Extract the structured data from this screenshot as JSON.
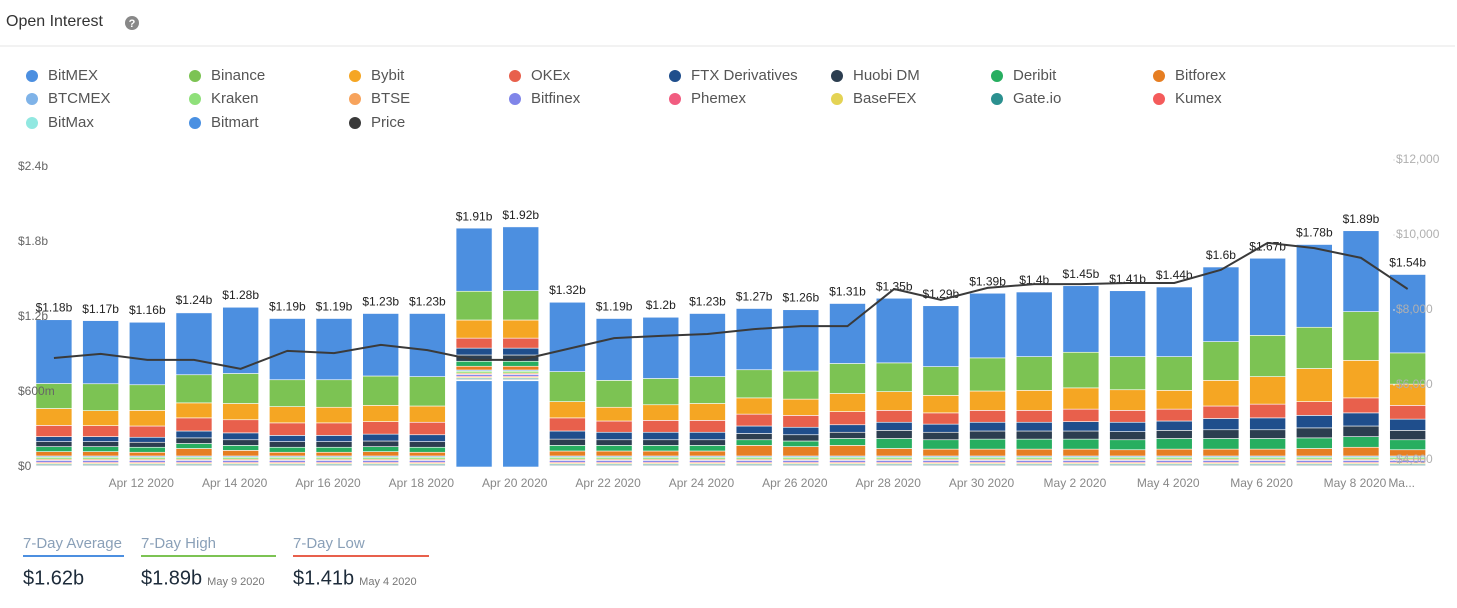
{
  "header": {
    "title": "Open Interest"
  },
  "chart_data": {
    "type": "stacked-bar",
    "categories": [
      null,
      null,
      "Apr 12 2020",
      null,
      "Apr 14 2020",
      null,
      "Apr 16 2020",
      null,
      "Apr 18 2020",
      null,
      "Apr 20 2020",
      null,
      "Apr 22 2020",
      null,
      "Apr 24 2020",
      null,
      "Apr 26 2020",
      null,
      "Apr 28 2020",
      null,
      "Apr 30 2020",
      null,
      "May 2 2020",
      null,
      "May 4 2020",
      null,
      "May 6 2020",
      null,
      "May 8 2020",
      "Ma..."
    ],
    "series": [
      {
        "name": "BitMEX",
        "color": "#4c8fe0",
        "values": [
          510,
          505,
          500,
          495,
          530,
          490,
          490,
          500,
          505,
          505,
          510,
          555,
          495,
          490,
          505,
          490,
          490,
          480,
          517,
          487,
          517,
          517,
          532,
          527,
          557,
          597,
          617,
          662,
          647,
          627
        ]
      },
      {
        "name": "Binance",
        "color": "#7cc353",
        "values": [
          200,
          215,
          205,
          225,
          240,
          215,
          220,
          235,
          235,
          230,
          235,
          240,
          215,
          210,
          215,
          225,
          225,
          240,
          230,
          230,
          265,
          270,
          285,
          265,
          270,
          310,
          330,
          330,
          390,
          250
        ]
      },
      {
        "name": "Bybit",
        "color": "#f5a623",
        "values": [
          135,
          120,
          125,
          120,
          130,
          130,
          125,
          130,
          130,
          145,
          145,
          130,
          110,
          125,
          135,
          130,
          130,
          145,
          150,
          140,
          155,
          160,
          170,
          165,
          150,
          205,
          220,
          265,
          300,
          170
        ]
      },
      {
        "name": "OKEx",
        "color": "#e8604c",
        "values": [
          90,
          88,
          90,
          105,
          105,
          100,
          100,
          100,
          100,
          80,
          80,
          105,
          90,
          95,
          95,
          95,
          95,
          105,
          95,
          90,
          95,
          95,
          100,
          95,
          95,
          100,
          110,
          110,
          120,
          110
        ]
      },
      {
        "name": "FTX Derivatives",
        "color": "#1f4e8c",
        "values": [
          40,
          40,
          40,
          55,
          55,
          50,
          50,
          55,
          55,
          55,
          55,
          65,
          60,
          60,
          60,
          60,
          60,
          60,
          65,
          65,
          70,
          70,
          75,
          75,
          75,
          90,
          95,
          100,
          105,
          90
        ]
      },
      {
        "name": "Huobi DM",
        "color": "#2c3e50",
        "values": [
          40,
          40,
          40,
          45,
          45,
          45,
          45,
          45,
          45,
          50,
          50,
          50,
          45,
          45,
          45,
          50,
          50,
          50,
          65,
          60,
          65,
          65,
          65,
          65,
          65,
          70,
          70,
          80,
          85,
          75
        ]
      },
      {
        "name": "Deribit",
        "color": "#27ae60",
        "values": [
          40,
          40,
          40,
          40,
          40,
          40,
          40,
          40,
          40,
          40,
          40,
          45,
          45,
          45,
          45,
          45,
          45,
          55,
          80,
          75,
          80,
          80,
          80,
          80,
          85,
          85,
          85,
          85,
          85,
          80
        ]
      },
      {
        "name": "Bitforex",
        "color": "#e67e22",
        "values": [
          35,
          35,
          30,
          60,
          45,
          30,
          30,
          35,
          30,
          30,
          30,
          40,
          40,
          40,
          40,
          85,
          75,
          85,
          60,
          55,
          55,
          55,
          55,
          50,
          55,
          55,
          55,
          60,
          70,
          50
        ]
      },
      {
        "name": "BTCMEX",
        "color": "#7fb3e8",
        "values": [
          10,
          10,
          10,
          10,
          10,
          10,
          10,
          10,
          10,
          10,
          10,
          10,
          10,
          10,
          10,
          10,
          10,
          10,
          10,
          10,
          10,
          10,
          10,
          10,
          10,
          10,
          10,
          10,
          10,
          10
        ]
      },
      {
        "name": "Kraken",
        "color": "#8fe07a",
        "values": [
          15,
          15,
          15,
          15,
          15,
          15,
          15,
          15,
          15,
          15,
          15,
          15,
          15,
          15,
          15,
          15,
          15,
          15,
          15,
          15,
          15,
          15,
          15,
          15,
          15,
          15,
          15,
          15,
          15,
          15
        ]
      },
      {
        "name": "BTSE",
        "color": "#f7a35c",
        "values": [
          10,
          10,
          10,
          10,
          10,
          10,
          10,
          10,
          10,
          10,
          10,
          10,
          10,
          10,
          10,
          10,
          10,
          10,
          10,
          10,
          10,
          10,
          10,
          10,
          10,
          10,
          10,
          10,
          10,
          10
        ]
      },
      {
        "name": "Bitfinex",
        "color": "#8085e9",
        "values": [
          15,
          15,
          15,
          15,
          15,
          15,
          15,
          15,
          15,
          15,
          15,
          15,
          15,
          15,
          15,
          15,
          15,
          15,
          15,
          15,
          15,
          15,
          15,
          15,
          15,
          15,
          15,
          15,
          15,
          15
        ]
      },
      {
        "name": "Phemex",
        "color": "#f15c80",
        "values": [
          8,
          8,
          8,
          8,
          8,
          8,
          8,
          8,
          8,
          8,
          8,
          8,
          8,
          8,
          8,
          8,
          8,
          8,
          8,
          8,
          8,
          8,
          8,
          8,
          8,
          8,
          8,
          8,
          8,
          8
        ]
      },
      {
        "name": "BaseFEX",
        "color": "#e4d354",
        "values": [
          8,
          8,
          8,
          8,
          8,
          8,
          8,
          8,
          8,
          8,
          8,
          8,
          8,
          8,
          8,
          8,
          8,
          8,
          8,
          8,
          8,
          8,
          8,
          8,
          8,
          8,
          8,
          8,
          8,
          8
        ]
      },
      {
        "name": "Gate.io",
        "color": "#2b908f",
        "values": [
          10,
          10,
          10,
          10,
          10,
          10,
          10,
          10,
          10,
          10,
          10,
          10,
          10,
          10,
          10,
          10,
          10,
          10,
          10,
          10,
          10,
          10,
          10,
          10,
          10,
          10,
          10,
          10,
          10,
          10
        ]
      },
      {
        "name": "Kumex",
        "color": "#f45b5b",
        "values": [
          6,
          6,
          6,
          6,
          6,
          6,
          6,
          6,
          6,
          6,
          6,
          6,
          6,
          6,
          6,
          6,
          6,
          6,
          6,
          6,
          6,
          6,
          6,
          6,
          6,
          6,
          6,
          6,
          6,
          6
        ]
      },
      {
        "name": "BitMax",
        "color": "#91e8e1",
        "values": [
          4,
          4,
          4,
          4,
          4,
          4,
          4,
          4,
          4,
          4,
          4,
          4,
          4,
          4,
          4,
          4,
          4,
          4,
          4,
          4,
          4,
          4,
          4,
          4,
          4,
          4,
          4,
          4,
          4,
          4
        ]
      },
      {
        "name": "Bitmart",
        "color": "#4a90e2",
        "values": [
          2,
          2,
          2,
          2,
          2,
          2,
          2,
          2,
          2,
          690,
          690,
          2,
          2,
          2,
          2,
          2,
          2,
          2,
          2,
          2,
          2,
          2,
          2,
          2,
          2,
          2,
          2,
          2,
          2,
          2
        ]
      },
      {
        "name": "Price",
        "color": "#3a3a3a",
        "type": "line",
        "axis": "y2",
        "values": [
          6720,
          6830,
          6670,
          6670,
          6430,
          6910,
          6850,
          7070,
          6930,
          6670,
          6670,
          6960,
          7250,
          7310,
          7360,
          7490,
          7570,
          7570,
          8560,
          8270,
          8590,
          8690,
          8690,
          8720,
          8720,
          9070,
          9790,
          9650,
          9390,
          8560
        ]
      }
    ],
    "totals": {
      "values": [
        1180,
        1170,
        1160,
        1240,
        1280,
        1190,
        1190,
        1230,
        1230,
        1910,
        1920,
        1320,
        1190,
        1200,
        1230,
        1270,
        1260,
        1310,
        1350,
        1290,
        1390,
        1400,
        1450,
        1410,
        1440,
        1600,
        1670,
        1780,
        1890,
        1540
      ],
      "value_labels": [
        "$1.18b",
        "$1.17b",
        "$1.16b",
        "$1.24b",
        "$1.28b",
        "$1.19b",
        "$1.19b",
        "$1.23b",
        "$1.23b",
        "$1.91b",
        "$1.92b",
        "$1.32b",
        "$1.19b",
        "$1.2b",
        "$1.23b",
        "$1.27b",
        "$1.26b",
        "$1.31b",
        "$1.35b",
        "$1.29b",
        "$1.39b",
        "$1.4b",
        "$1.45b",
        "$1.41b",
        "$1.44b",
        "$1.6b",
        "$1.67b",
        "$1.78b",
        "$1.89b",
        "$1.54b"
      ]
    },
    "ylim": [
      0,
      2400
    ],
    "yticks": [
      {
        "value": 0,
        "label": "$0"
      },
      {
        "value": 600,
        "label": "$600m"
      },
      {
        "value": 1200,
        "label": "$1.2b"
      },
      {
        "value": 1800,
        "label": "$1.8b"
      },
      {
        "value": 2400,
        "label": "$2.4b"
      }
    ],
    "y2lim": [
      3813,
      11813
    ],
    "y2ticks": [
      {
        "value": 4000,
        "label": "$4,000"
      },
      {
        "value": 6000,
        "label": "$6,000"
      },
      {
        "value": 8000,
        "label": "$8,000"
      },
      {
        "value": 10000,
        "label": "$10,000"
      },
      {
        "value": 12000,
        "label": "$12,000"
      }
    ],
    "grid": true
  },
  "stats": [
    {
      "label": "7-Day Average",
      "value": "$1.62b"
    },
    {
      "label": "7-Day High",
      "value": "$1.89b",
      "date": "May 9 2020"
    },
    {
      "label": "7-Day Low",
      "value": "$1.41b",
      "date": "May 4 2020"
    }
  ]
}
